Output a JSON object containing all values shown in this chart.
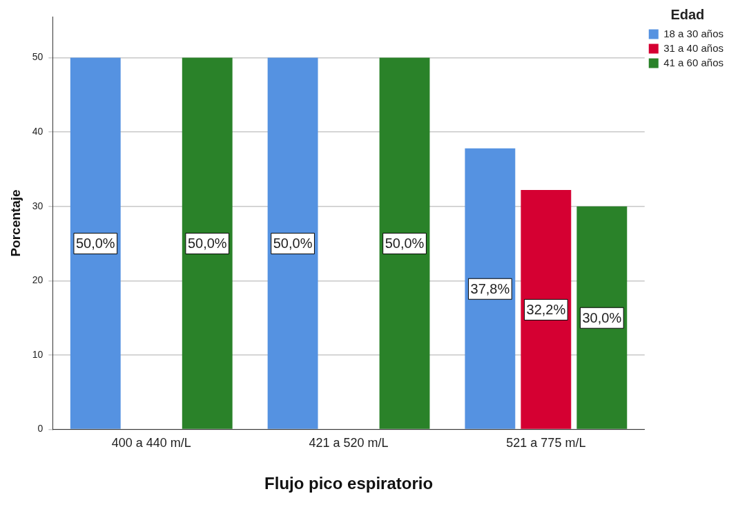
{
  "chart_data": {
    "type": "bar",
    "xlabel": "Flujo pico espiratorio",
    "ylabel": "Porcentaje",
    "legend_title": "Edad",
    "categories": [
      "400 a 440 m/L",
      "421 a 520 m/L",
      "521 a 775 m/L"
    ],
    "series": [
      {
        "name": "18 a 30 años",
        "color": "#5592e1",
        "values": [
          50,
          50,
          37.8
        ],
        "value_labels": [
          "50,0%",
          "50,0%",
          "37,8%"
        ]
      },
      {
        "name": "31 a 40 años",
        "color": "#d50032",
        "values": [
          null,
          null,
          32.2
        ],
        "value_labels": [
          null,
          null,
          "32,2%"
        ]
      },
      {
        "name": "41 a 60 años",
        "color": "#2a8229",
        "values": [
          50,
          50,
          30
        ],
        "value_labels": [
          "50,0%",
          "50,0%",
          "30,0%"
        ]
      }
    ],
    "ylim": [
      0,
      55.5
    ],
    "yticks": [
      0,
      10,
      20,
      30,
      40,
      50
    ],
    "grid": "y",
    "legend": "top right"
  }
}
